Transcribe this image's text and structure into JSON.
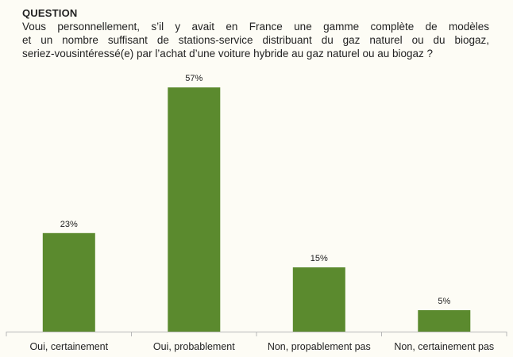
{
  "question": {
    "label": "QUESTION",
    "lines": [
      "Vous personnellement, s’il y avait en France une gamme complète de modèles",
      "et un nombre suffisant de stations-service distribuant du gaz naturel ou du biogaz,",
      "seriez-vousintéressé(e) par l’achat d’une voiture hybride au gaz naturel ou au biogaz ?"
    ]
  },
  "colors": {
    "bar": "#5b8a2e",
    "axis": "#b8b8b8",
    "background": "#fdfcf5"
  },
  "chart_data": {
    "type": "bar",
    "categories": [
      "Oui, certainement",
      "Oui, probablement",
      "Non, propablement pas",
      "Non, certainement  pas"
    ],
    "values": [
      23,
      57,
      15,
      5
    ],
    "value_labels": [
      "23%",
      "57%",
      "15%",
      "5%"
    ],
    "title": "",
    "xlabel": "",
    "ylabel": "",
    "ylim": [
      0,
      60
    ],
    "grid": false,
    "legend": "none"
  }
}
